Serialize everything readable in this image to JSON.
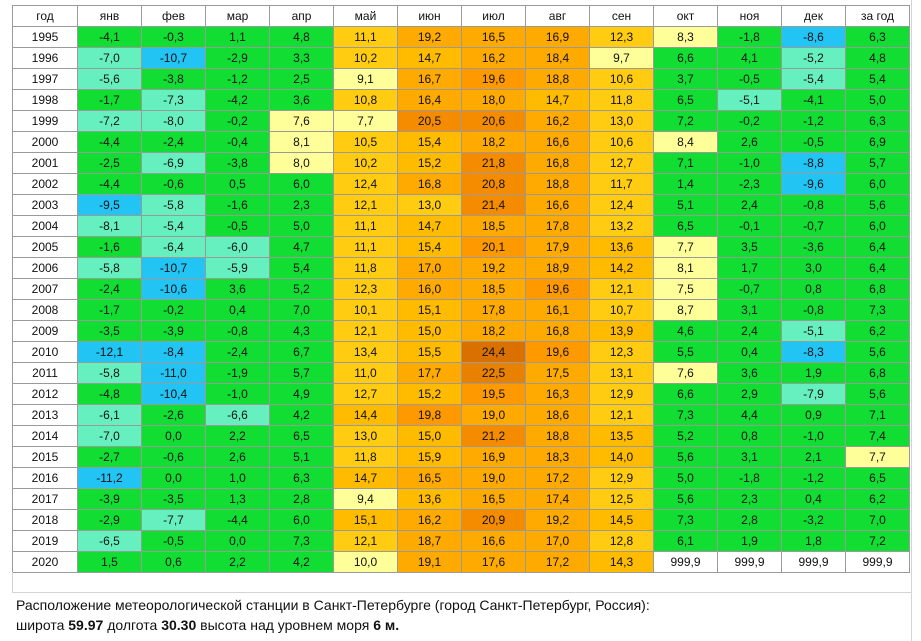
{
  "table": {
    "header": [
      "год",
      "янв",
      "фев",
      "мар",
      "апр",
      "май",
      "июн",
      "июл",
      "авг",
      "сен",
      "окт",
      "ноя",
      "дек",
      "за год"
    ],
    "rows": [
      {
        "year": "1995",
        "values": [
          "-4,1",
          "-0,3",
          "1,1",
          "4,8",
          "11,1",
          "19,2",
          "16,5",
          "16,9",
          "12,3",
          "8,3",
          "-1,8",
          "-8,6",
          "6,3"
        ]
      },
      {
        "year": "1996",
        "values": [
          "-7,0",
          "-10,7",
          "-2,9",
          "3,3",
          "10,2",
          "14,7",
          "16,2",
          "18,4",
          "9,7",
          "6,6",
          "4,1",
          "-5,2",
          "4,8"
        ]
      },
      {
        "year": "1997",
        "values": [
          "-5,6",
          "-3,8",
          "-1,2",
          "2,5",
          "9,1",
          "16,7",
          "19,6",
          "18,8",
          "10,6",
          "3,7",
          "-0,5",
          "-5,4",
          "5,4"
        ]
      },
      {
        "year": "1998",
        "values": [
          "-1,7",
          "-7,3",
          "-4,2",
          "3,6",
          "10,8",
          "16,4",
          "18,0",
          "14,7",
          "11,8",
          "6,5",
          "-5,1",
          "-4,1",
          "5,0"
        ]
      },
      {
        "year": "1999",
        "values": [
          "-7,2",
          "-8,0",
          "-0,2",
          "7,6",
          "7,7",
          "20,5",
          "20,6",
          "16,2",
          "13,0",
          "7,2",
          "-0,2",
          "-1,2",
          "6,3"
        ]
      },
      {
        "year": "2000",
        "values": [
          "-4,4",
          "-2,4",
          "-0,4",
          "8,1",
          "10,5",
          "15,4",
          "18,2",
          "16,6",
          "10,6",
          "8,4",
          "2,6",
          "-0,5",
          "6,9"
        ]
      },
      {
        "year": "2001",
        "values": [
          "-2,5",
          "-6,9",
          "-3,8",
          "8,0",
          "10,2",
          "15,2",
          "21,8",
          "16,8",
          "12,7",
          "7,1",
          "-1,0",
          "-8,8",
          "5,7"
        ]
      },
      {
        "year": "2002",
        "values": [
          "-4,4",
          "-0,6",
          "0,5",
          "6,0",
          "12,4",
          "16,8",
          "20,8",
          "18,8",
          "11,7",
          "1,4",
          "-2,3",
          "-9,6",
          "6,0"
        ]
      },
      {
        "year": "2003",
        "values": [
          "-9,5",
          "-5,8",
          "-1,6",
          "2,3",
          "12,1",
          "13,0",
          "21,4",
          "16,6",
          "12,4",
          "5,1",
          "2,4",
          "-0,8",
          "5,6"
        ]
      },
      {
        "year": "2004",
        "values": [
          "-8,1",
          "-5,4",
          "-0,5",
          "5,0",
          "11,1",
          "14,7",
          "18,5",
          "17,8",
          "13,2",
          "6,5",
          "-0,1",
          "-0,7",
          "6,0"
        ]
      },
      {
        "year": "2005",
        "values": [
          "-1,6",
          "-6,4",
          "-6,0",
          "4,7",
          "11,1",
          "15,4",
          "20,1",
          "17,9",
          "13,6",
          "7,7",
          "3,5",
          "-3,6",
          "6,4"
        ]
      },
      {
        "year": "2006",
        "values": [
          "-5,8",
          "-10,7",
          "-5,9",
          "5,4",
          "11,8",
          "17,0",
          "19,2",
          "18,9",
          "14,2",
          "8,1",
          "1,7",
          "3,0",
          "6,4"
        ]
      },
      {
        "year": "2007",
        "values": [
          "-2,4",
          "-10,6",
          "3,6",
          "5,2",
          "12,3",
          "16,0",
          "18,5",
          "19,6",
          "12,1",
          "7,5",
          "-0,7",
          "0,8",
          "6,8"
        ]
      },
      {
        "year": "2008",
        "values": [
          "-1,7",
          "-0,2",
          "0,4",
          "7,0",
          "10,1",
          "15,1",
          "17,8",
          "16,1",
          "10,7",
          "8,7",
          "3,1",
          "-0,8",
          "7,3"
        ]
      },
      {
        "year": "2009",
        "values": [
          "-3,5",
          "-3,9",
          "-0,8",
          "4,3",
          "12,1",
          "15,0",
          "18,2",
          "16,8",
          "13,9",
          "4,6",
          "2,4",
          "-5,1",
          "6,2"
        ]
      },
      {
        "year": "2010",
        "values": [
          "-12,1",
          "-8,4",
          "-2,4",
          "6,7",
          "13,4",
          "15,5",
          "24,4",
          "19,6",
          "12,3",
          "5,5",
          "0,4",
          "-8,3",
          "5,6"
        ]
      },
      {
        "year": "2011",
        "values": [
          "-5,8",
          "-11,0",
          "-1,9",
          "5,7",
          "11,0",
          "17,7",
          "22,5",
          "17,5",
          "13,1",
          "7,6",
          "3,6",
          "1,9",
          "6,8"
        ]
      },
      {
        "year": "2012",
        "values": [
          "-4,8",
          "-10,4",
          "-1,0",
          "4,9",
          "12,7",
          "15,2",
          "19,5",
          "16,3",
          "12,9",
          "6,6",
          "2,9",
          "-7,9",
          "5,6"
        ]
      },
      {
        "year": "2013",
        "values": [
          "-6,1",
          "-2,6",
          "-6,6",
          "4,2",
          "14,4",
          "19,8",
          "19,0",
          "18,6",
          "12,1",
          "7,3",
          "4,4",
          "0,9",
          "7,1"
        ]
      },
      {
        "year": "2014",
        "values": [
          "-7,0",
          "0,0",
          "2,2",
          "6,5",
          "13,0",
          "15,0",
          "21,2",
          "18,8",
          "13,5",
          "5,2",
          "0,8",
          "-1,0",
          "7,4"
        ]
      },
      {
        "year": "2015",
        "values": [
          "-2,7",
          "-0,6",
          "2,6",
          "5,1",
          "11,8",
          "15,9",
          "16,9",
          "18,3",
          "14,0",
          "5,6",
          "3,1",
          "2,1",
          "7,7"
        ]
      },
      {
        "year": "2016",
        "values": [
          "-11,2",
          "0,0",
          "1,0",
          "6,3",
          "14,7",
          "16,5",
          "19,0",
          "17,2",
          "12,9",
          "5,0",
          "-1,8",
          "-1,2",
          "6,5"
        ]
      },
      {
        "year": "2017",
        "values": [
          "-3,9",
          "-3,5",
          "1,3",
          "2,8",
          "9,4",
          "13,6",
          "16,5",
          "17,4",
          "12,5",
          "5,6",
          "2,3",
          "0,4",
          "6,2"
        ]
      },
      {
        "year": "2018",
        "values": [
          "-2,9",
          "-7,7",
          "-4,4",
          "6,0",
          "15,1",
          "16,2",
          "20,9",
          "19,2",
          "14,5",
          "7,3",
          "2,8",
          "-3,2",
          "7,0"
        ]
      },
      {
        "year": "2019",
        "values": [
          "-6,5",
          "-0,5",
          "0,0",
          "7,3",
          "12,1",
          "18,7",
          "16,6",
          "17,0",
          "12,8",
          "6,1",
          "1,9",
          "1,8",
          "7,2"
        ]
      },
      {
        "year": "2020",
        "values": [
          "1,5",
          "0,6",
          "2,2",
          "4,2",
          "10,0",
          "19,1",
          "17,6",
          "17,2",
          "14,3",
          "999,9",
          "999,9",
          "999,9",
          "999,9"
        ]
      }
    ]
  },
  "footer": {
    "location": "Расположение метеорологической станции в Санкт-Петербурге (город Санкт-Петербург, Россия):",
    "coords": [
      {
        "label": "широта",
        "value": "59.97"
      },
      {
        "label": "долгота",
        "value": "30.30"
      },
      {
        "label": "высота над уровнем моря",
        "value": "6 м."
      }
    ]
  }
}
